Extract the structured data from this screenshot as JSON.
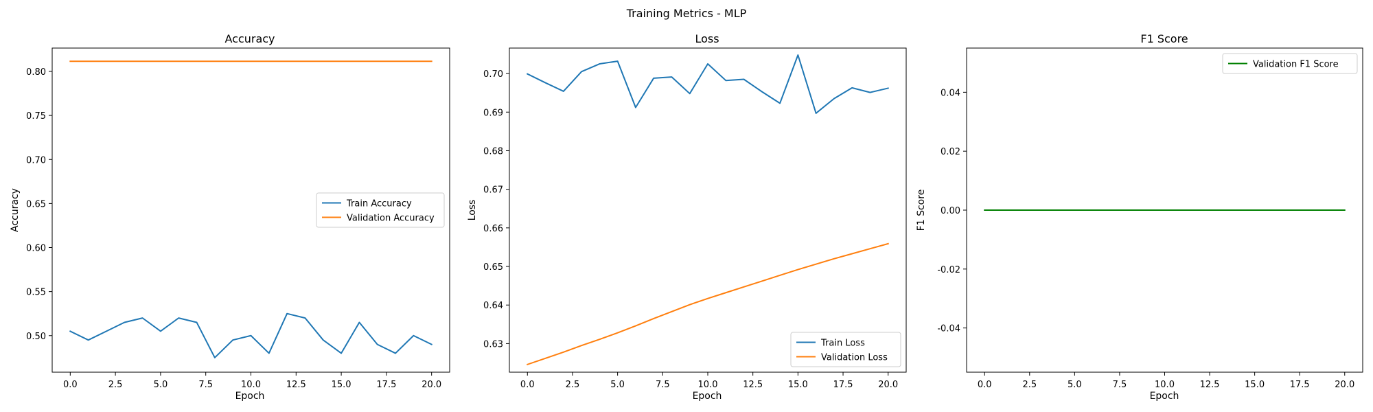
{
  "figure": {
    "title": "Training Metrics - MLP"
  },
  "chart_data": [
    {
      "type": "line",
      "title": "Accuracy",
      "xlabel": "Epoch",
      "ylabel": "Accuracy",
      "xlim": [
        -1.0,
        21.0
      ],
      "ylim": [
        0.4585,
        0.8265
      ],
      "xticks": [
        0.0,
        2.5,
        5.0,
        7.5,
        10.0,
        12.5,
        15.0,
        17.5,
        20.0
      ],
      "yticks": [
        0.5,
        0.55,
        0.6,
        0.65,
        0.7,
        0.75,
        0.8
      ],
      "tick_decimals": {
        "x": 1,
        "y": 2
      },
      "legend_position": "center-right",
      "grid": false,
      "x": [
        0,
        1,
        2,
        3,
        4,
        5,
        6,
        7,
        8,
        9,
        10,
        11,
        12,
        13,
        14,
        15,
        16,
        17,
        18,
        19,
        20
      ],
      "series": [
        {
          "name": "Train Accuracy",
          "color": "#1f77b4",
          "values": [
            0.505,
            0.495,
            0.505,
            0.515,
            0.52,
            0.505,
            0.52,
            0.515,
            0.475,
            0.495,
            0.5,
            0.48,
            0.525,
            0.52,
            0.495,
            0.48,
            0.515,
            0.49,
            0.48,
            0.5,
            0.49
          ]
        },
        {
          "name": "Validation Accuracy",
          "color": "#ff7f0e",
          "values": [
            0.8115,
            0.8115,
            0.8115,
            0.8115,
            0.8115,
            0.8115,
            0.8115,
            0.8115,
            0.8115,
            0.8115,
            0.8115,
            0.8115,
            0.8115,
            0.8115,
            0.8115,
            0.8115,
            0.8115,
            0.8115,
            0.8115,
            0.8115,
            0.8115
          ]
        }
      ]
    },
    {
      "type": "line",
      "title": "Loss",
      "xlabel": "Epoch",
      "ylabel": "Loss",
      "xlim": [
        -1.0,
        21.0
      ],
      "ylim": [
        0.6226,
        0.7066
      ],
      "xticks": [
        0.0,
        2.5,
        5.0,
        7.5,
        10.0,
        12.5,
        15.0,
        17.5,
        20.0
      ],
      "yticks": [
        0.63,
        0.64,
        0.65,
        0.66,
        0.67,
        0.68,
        0.69,
        0.7
      ],
      "tick_decimals": {
        "x": 1,
        "y": 2
      },
      "legend_position": "lower-right",
      "grid": false,
      "x": [
        0,
        1,
        2,
        3,
        4,
        5,
        6,
        7,
        8,
        9,
        10,
        11,
        12,
        13,
        14,
        15,
        16,
        17,
        18,
        19,
        20
      ],
      "series": [
        {
          "name": "Train Loss",
          "color": "#1f77b4",
          "values": [
            0.6999,
            0.6976,
            0.6954,
            0.7005,
            0.7025,
            0.7032,
            0.6912,
            0.6988,
            0.6991,
            0.6948,
            0.7025,
            0.6982,
            0.6985,
            0.6953,
            0.6923,
            0.7048,
            0.6897,
            0.6935,
            0.6963,
            0.6951,
            0.6962
          ]
        },
        {
          "name": "Validation Loss",
          "color": "#ff7f0e",
          "values": [
            0.6246,
            0.6262,
            0.6278,
            0.6295,
            0.6311,
            0.6328,
            0.6346,
            0.6365,
            0.6383,
            0.6401,
            0.6417,
            0.6432,
            0.6447,
            0.6462,
            0.6477,
            0.6492,
            0.6506,
            0.652,
            0.6533,
            0.6546,
            0.6559
          ]
        }
      ]
    },
    {
      "type": "line",
      "title": "F1 Score",
      "xlabel": "Epoch",
      "ylabel": "F1 Score",
      "xlim": [
        -1.0,
        21.0
      ],
      "ylim": [
        -0.055,
        0.055
      ],
      "xticks": [
        0.0,
        2.5,
        5.0,
        7.5,
        10.0,
        12.5,
        15.0,
        17.5,
        20.0
      ],
      "yticks": [
        -0.04,
        -0.02,
        0.0,
        0.02,
        0.04
      ],
      "tick_decimals": {
        "x": 1,
        "y": 2
      },
      "legend_position": "top-right",
      "grid": false,
      "x": [
        0,
        1,
        2,
        3,
        4,
        5,
        6,
        7,
        8,
        9,
        10,
        11,
        12,
        13,
        14,
        15,
        16,
        17,
        18,
        19,
        20
      ],
      "series": [
        {
          "name": "Validation F1 Score",
          "color": "#008000",
          "values": [
            0,
            0,
            0,
            0,
            0,
            0,
            0,
            0,
            0,
            0,
            0,
            0,
            0,
            0,
            0,
            0,
            0,
            0,
            0,
            0,
            0
          ]
        }
      ]
    }
  ]
}
